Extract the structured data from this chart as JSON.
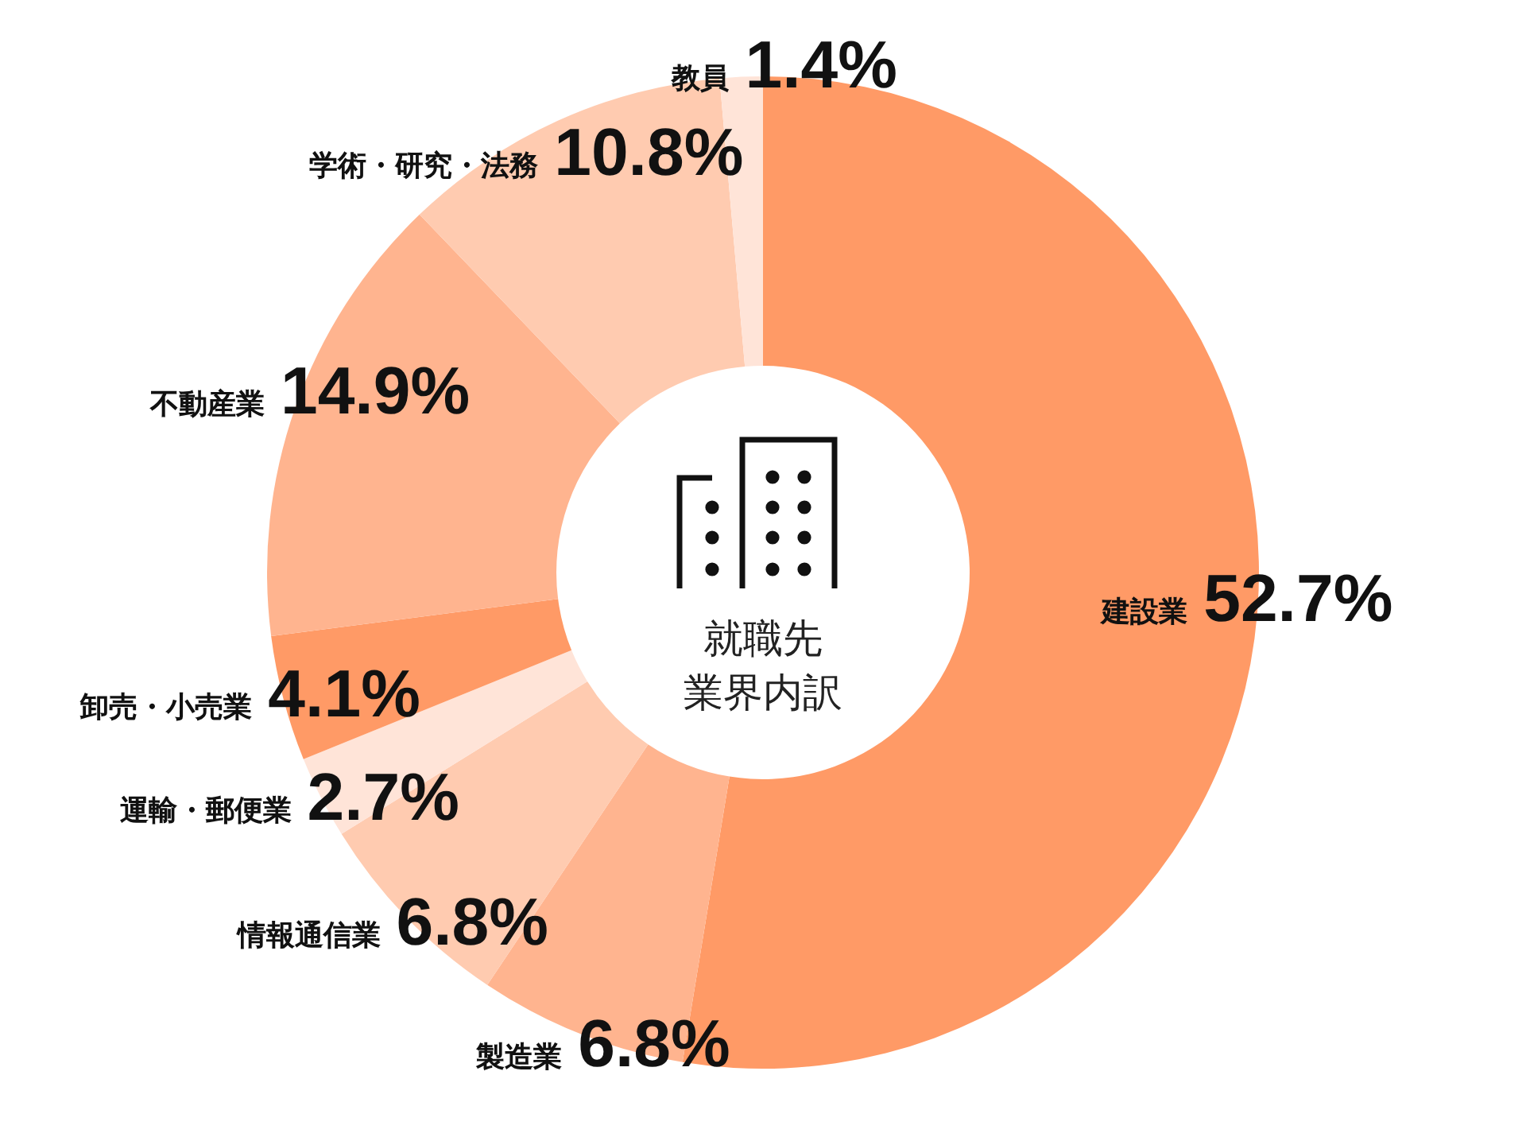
{
  "chart_data": {
    "type": "donut",
    "title": "就職先業界内訳",
    "categories": [
      "建設業",
      "製造業",
      "情報通信業",
      "運輸・郵便業",
      "卸売・小売業",
      "不動産業",
      "学術・研究・法務",
      "教員"
    ],
    "values": [
      52.7,
      6.8,
      6.8,
      2.7,
      4.1,
      14.9,
      10.8,
      1.4
    ],
    "colors": [
      "#ff9a66",
      "#ffb48f",
      "#ffcbb0",
      "#ffe4d8",
      "#ff9a66",
      "#ffb48f",
      "#ffcbb0",
      "#ffe4d8"
    ],
    "value_labels": [
      "52.7%",
      "6.8%",
      "6.8%",
      "2.7%",
      "4.1%",
      "14.9%",
      "10.8%",
      "1.4%"
    ]
  }
}
